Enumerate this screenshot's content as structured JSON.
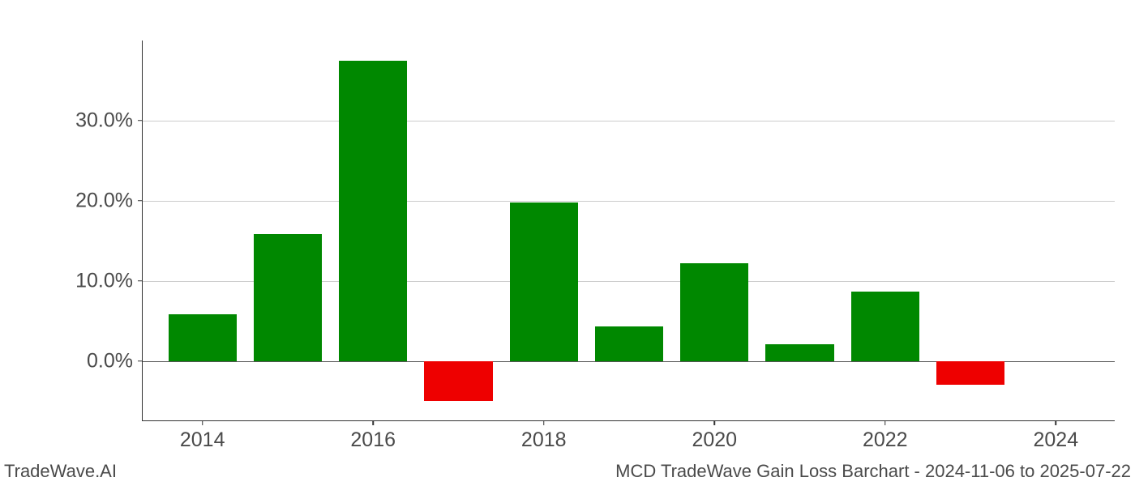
{
  "chart": {
    "type": "bar",
    "years": [
      2014,
      2015,
      2016,
      2017,
      2018,
      2019,
      2020,
      2021,
      2022,
      2023
    ],
    "values": [
      5.8,
      15.8,
      37.5,
      -5.0,
      19.8,
      4.3,
      12.2,
      2.1,
      8.7,
      -3.0
    ],
    "positive_color": "#008800",
    "negative_color": "#ee0000",
    "background_color": "#ffffff",
    "grid_color": "#cccccc",
    "axis_color": "#333333",
    "tick_label_color": "#4a4a4a",
    "y_ticks": [
      0.0,
      10.0,
      20.0,
      30.0
    ],
    "y_tick_labels": [
      "0.0%",
      "10.0%",
      "20.0%",
      "30.0%"
    ],
    "x_ticks": [
      2014,
      2016,
      2018,
      2020,
      2022,
      2024
    ],
    "x_tick_labels": [
      "2014",
      "2016",
      "2018",
      "2020",
      "2022",
      "2024"
    ],
    "ylim": [
      -7.5,
      40.0
    ],
    "xlim": [
      2013.3,
      2024.7
    ],
    "bar_width": 0.8,
    "tick_fontsize": 25,
    "footer_fontsize": 22
  },
  "footer": {
    "left": "TradeWave.AI",
    "right": "MCD TradeWave Gain Loss Barchart - 2024-11-06 to 2025-07-22"
  }
}
